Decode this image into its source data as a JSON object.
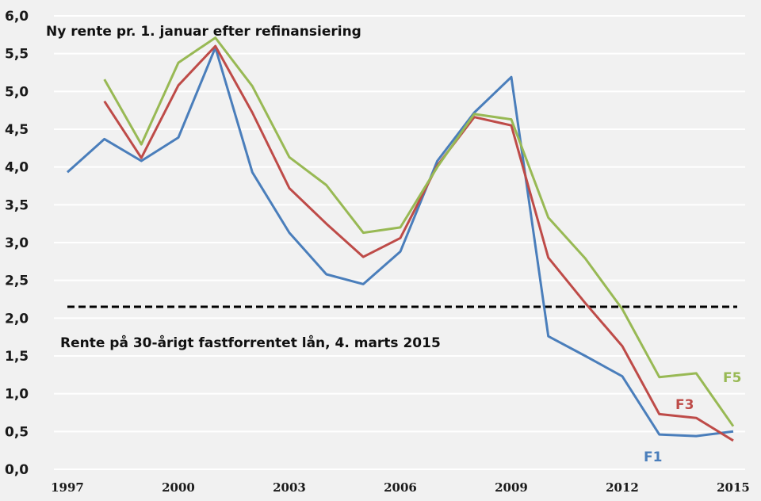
{
  "chart_data": {
    "type": "line",
    "title": "Ny rente pr. 1. januar efter refinansiering",
    "xlabel": "",
    "ylabel": "",
    "x": [
      1997,
      1998,
      1999,
      2000,
      2001,
      2002,
      2003,
      2004,
      2005,
      2006,
      2007,
      2008,
      2009,
      2010,
      2011,
      2012,
      2013,
      2014,
      2015
    ],
    "x_tick_labels": [
      "1997",
      "2000",
      "2003",
      "2006",
      "2009",
      "2012",
      "2015"
    ],
    "x_tick_values": [
      1997,
      2000,
      2003,
      2006,
      2009,
      2012,
      2015
    ],
    "xlim": [
      1997,
      2015
    ],
    "ylim": [
      0,
      6
    ],
    "y_tick_labels": [
      "0,0",
      "0,5",
      "1,0",
      "1,5",
      "2,0",
      "2,5",
      "3,0",
      "3,5",
      "4,0",
      "4,5",
      "5,0",
      "5,5",
      "6,0"
    ],
    "y_tick_values": [
      0,
      0.5,
      1,
      1.5,
      2,
      2.5,
      3,
      3.5,
      4,
      4.5,
      5,
      5.5,
      6
    ],
    "grid": true,
    "series": [
      {
        "name": "F1",
        "color": "#4a7ebb",
        "values": [
          3.93,
          4.37,
          4.08,
          4.39,
          5.58,
          3.93,
          3.13,
          2.58,
          2.45,
          2.88,
          4.08,
          4.72,
          5.19,
          1.76,
          1.5,
          1.23,
          0.46,
          0.44,
          0.5
        ]
      },
      {
        "name": "F3",
        "color": "#be4b48",
        "values": [
          null,
          4.87,
          4.12,
          5.08,
          5.6,
          4.72,
          3.72,
          3.25,
          2.81,
          3.06,
          4.02,
          4.66,
          4.55,
          2.8,
          2.2,
          1.63,
          0.73,
          0.68,
          0.38
        ]
      },
      {
        "name": "F5",
        "color": "#98b954",
        "values": [
          null,
          5.16,
          4.3,
          5.38,
          5.71,
          5.07,
          4.13,
          3.76,
          3.13,
          3.2,
          4.0,
          4.7,
          4.63,
          3.33,
          2.79,
          2.12,
          1.22,
          1.27,
          0.57
        ]
      }
    ],
    "reference_line": {
      "value": 2.15,
      "style": "dashed",
      "color": "#000000",
      "label": "Rente på 30-årigt fastforrentet lån, 4. marts 2015"
    },
    "series_labels": [
      {
        "text": "F5",
        "series": "F5"
      },
      {
        "text": "F3",
        "series": "F3"
      },
      {
        "text": "F1",
        "series": "F1"
      }
    ],
    "legend": "none"
  }
}
